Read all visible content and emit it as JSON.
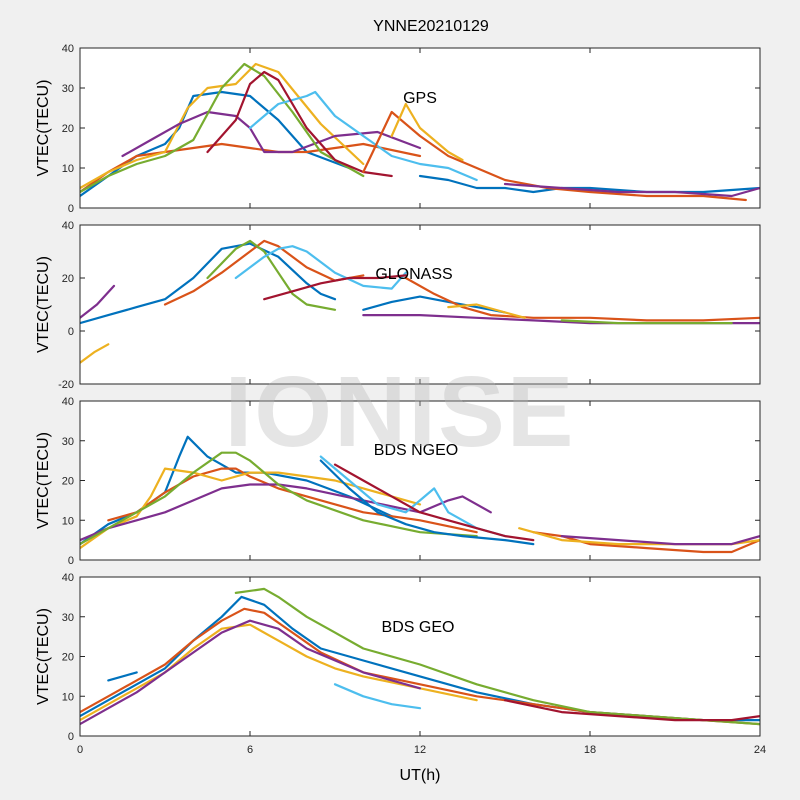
{
  "title": "YNNE20210129",
  "watermark": "IONISE",
  "xlabel": "UT(h)",
  "x_ticks": [
    "0",
    "6",
    "12",
    "18",
    "24"
  ],
  "colors": [
    "#0072BD",
    "#D95319",
    "#EDB120",
    "#7E2F8E",
    "#77AC30",
    "#4DBEEE",
    "#A2142F"
  ],
  "chart_data": [
    {
      "type": "line",
      "title": "GPS",
      "ylabel": "VTEC(TECU)",
      "xlim": [
        0,
        24
      ],
      "ylim": [
        0,
        40
      ],
      "y_ticks": [
        "0",
        "10",
        "20",
        "30",
        "40"
      ],
      "series": [
        {
          "x": [
            0.0,
            1.0,
            2.0,
            3.0,
            3.5,
            4.0,
            5.0,
            6.0,
            7.0,
            8.0,
            9.5
          ],
          "values": [
            3,
            8,
            13,
            16,
            20,
            28,
            29,
            28,
            22,
            14,
            10
          ]
        },
        {
          "x": [
            0.0,
            1.0,
            2.0,
            3.0,
            4.0,
            5.0,
            6.0,
            7.0,
            8.0,
            9.0,
            10.0,
            12.0
          ],
          "values": [
            4,
            9,
            13,
            14,
            15,
            16,
            15,
            14,
            14,
            15,
            16,
            13
          ]
        },
        {
          "x": [
            0.0,
            1.0,
            2.0,
            3.0,
            3.8,
            4.5,
            5.5,
            6.2,
            7.0,
            8.5,
            10.0
          ],
          "values": [
            5,
            9,
            12,
            14,
            25,
            30,
            31,
            36,
            34,
            21,
            11
          ]
        },
        {
          "x": [
            1.5,
            2.5,
            3.5,
            4.5,
            5.5,
            6.0,
            6.5,
            7.5,
            9.0,
            10.5,
            12.0
          ],
          "values": [
            13,
            17,
            21,
            24,
            23,
            20,
            14,
            14,
            18,
            19,
            15
          ]
        },
        {
          "x": [
            0.0,
            1.0,
            2.0,
            3.0,
            4.0,
            5.0,
            5.8,
            6.5,
            7.5,
            8.5,
            10.0
          ],
          "values": [
            4,
            8,
            11,
            13,
            17,
            30,
            36,
            33,
            24,
            14,
            8
          ]
        },
        {
          "x": [
            6.0,
            7.0,
            8.0,
            8.3,
            9.0,
            10.0,
            11.0,
            12.0,
            13.0,
            14.0
          ],
          "values": [
            20,
            26,
            28,
            29,
            23,
            18,
            13,
            11,
            10,
            7
          ]
        },
        {
          "x": [
            4.5,
            5.5,
            6.0,
            6.5,
            7.0,
            8.0,
            9.0,
            10.0,
            11.0
          ],
          "values": [
            14,
            22,
            31,
            34,
            32,
            20,
            12,
            9,
            8
          ]
        },
        {
          "x": [
            12.0,
            13.0,
            14.0,
            15.0,
            16.0,
            17.0,
            18.0,
            20.0,
            22.0,
            24.0
          ],
          "values": [
            8,
            7,
            5,
            5,
            4,
            5,
            5,
            4,
            4,
            5
          ]
        },
        {
          "x": [
            10.0,
            11.0,
            12.0,
            13.0,
            14.0,
            15.0,
            16.5,
            18.0,
            20.0,
            22.0,
            23.5
          ],
          "values": [
            9,
            24,
            18,
            13,
            10,
            7,
            5,
            4,
            3,
            3,
            2
          ]
        },
        {
          "x": [
            11.0,
            11.5,
            12.0,
            13.0,
            13.5
          ],
          "values": [
            18,
            26,
            20,
            14,
            12
          ]
        },
        {
          "x": [
            15.0,
            17.0,
            19.0,
            21.0,
            23.0,
            24.0
          ],
          "values": [
            6,
            5,
            4,
            4,
            3,
            5
          ]
        }
      ]
    },
    {
      "type": "line",
      "title": "GLONASS",
      "ylabel": "VTEC(TECU)",
      "xlim": [
        0,
        24
      ],
      "ylim": [
        -20,
        40
      ],
      "y_ticks": [
        "-20",
        "0",
        "20",
        "40"
      ],
      "series": [
        {
          "x": [
            0.0,
            1.0,
            2.0,
            3.0,
            4.0,
            5.0,
            6.0,
            7.0,
            8.0,
            8.5,
            9.0
          ],
          "values": [
            3,
            6,
            9,
            12,
            20,
            31,
            33,
            28,
            18,
            14,
            12
          ]
        },
        {
          "x": [
            3.0,
            4.0,
            5.0,
            6.0,
            6.5,
            7.0,
            8.0,
            9.0,
            10.0
          ],
          "values": [
            10,
            15,
            22,
            30,
            34,
            32,
            24,
            19,
            21
          ]
        },
        {
          "x": [
            0.0,
            0.5,
            1.0
          ],
          "values": [
            -12,
            -8,
            -5
          ]
        },
        {
          "x": [
            0.0,
            0.6,
            1.2
          ],
          "values": [
            5,
            10,
            17
          ]
        },
        {
          "x": [
            4.5,
            5.5,
            6.0,
            6.5,
            7.0,
            7.5,
            8.0,
            9.0
          ],
          "values": [
            20,
            31,
            34,
            30,
            22,
            14,
            10,
            8
          ]
        },
        {
          "x": [
            5.5,
            6.5,
            7.0,
            7.5,
            8.0,
            9.0,
            10.0,
            11.0,
            11.5
          ],
          "values": [
            20,
            28,
            31,
            32,
            30,
            22,
            17,
            16,
            22
          ]
        },
        {
          "x": [
            6.5,
            7.5,
            8.5,
            9.5,
            10.5,
            11.5
          ],
          "values": [
            12,
            15,
            18,
            20,
            20,
            21
          ]
        },
        {
          "x": [
            10.0,
            11.0,
            12.0,
            13.0,
            14.0,
            15.0
          ],
          "values": [
            8,
            11,
            13,
            11,
            9,
            7
          ]
        },
        {
          "x": [
            11.5,
            12.5,
            13.5,
            14.5,
            16.0,
            18.0,
            20.0,
            22.0,
            24.0
          ],
          "values": [
            20,
            14,
            9,
            6,
            5,
            5,
            4,
            4,
            5
          ]
        },
        {
          "x": [
            13.0,
            14.0,
            15.0,
            15.7
          ],
          "values": [
            9,
            10,
            7,
            5
          ]
        },
        {
          "x": [
            10.0,
            12.0,
            14.0,
            16.0,
            18.0,
            20.0,
            22.0,
            24.0
          ],
          "values": [
            6,
            6,
            5,
            4,
            3,
            3,
            3,
            3
          ]
        },
        {
          "x": [
            17.0,
            19.0,
            21.0,
            23.0
          ],
          "values": [
            4,
            3,
            3,
            3
          ]
        }
      ]
    },
    {
      "type": "line",
      "title": "BDS NGEO",
      "ylabel": "VTEC(TECU)",
      "xlim": [
        0,
        24
      ],
      "ylim": [
        0,
        40
      ],
      "y_ticks": [
        "0",
        "10",
        "20",
        "30",
        "40"
      ],
      "series": [
        {
          "x": [
            0.0,
            1.0,
            2.0,
            3.0,
            3.5,
            3.8,
            4.5,
            5.5,
            6.5,
            8.0,
            9.5,
            11.0
          ],
          "values": [
            4,
            9,
            12,
            17,
            26,
            31,
            26,
            22,
            22,
            20,
            16,
            11
          ]
        },
        {
          "x": [
            1.0,
            2.0,
            3.0,
            4.0,
            5.0,
            5.5,
            6.0,
            7.0,
            8.0,
            10.0,
            12.0,
            14.0
          ],
          "values": [
            10,
            12,
            17,
            21,
            23,
            23,
            21,
            18,
            16,
            12,
            10,
            7
          ]
        },
        {
          "x": [
            0.0,
            1.0,
            2.0,
            2.5,
            3.0,
            4.0,
            5.0,
            6.0,
            7.0,
            8.0,
            9.0,
            10.0,
            12.0
          ],
          "values": [
            3,
            8,
            11,
            16,
            23,
            22,
            20,
            22,
            22,
            21,
            20,
            18,
            14
          ]
        },
        {
          "x": [
            0.0,
            1.0,
            2.0,
            3.0,
            4.0,
            5.0,
            6.0,
            7.0,
            8.0,
            10.0,
            12.0,
            13.0,
            13.5,
            14.5
          ],
          "values": [
            5,
            8,
            10,
            12,
            15,
            18,
            19,
            19,
            18,
            15,
            12,
            15,
            16,
            12
          ]
        },
        {
          "x": [
            0.0,
            1.0,
            2.0,
            3.0,
            4.0,
            5.0,
            5.5,
            6.0,
            7.0,
            8.0,
            10.0,
            12.0,
            14.0
          ],
          "values": [
            4,
            8,
            12,
            16,
            22,
            27,
            27,
            25,
            19,
            15,
            10,
            7,
            6
          ]
        },
        {
          "x": [
            8.5,
            9.5,
            10.5,
            11.5,
            12.0,
            12.5,
            13.0,
            14.0,
            15.0
          ],
          "values": [
            26,
            20,
            14,
            12,
            15,
            18,
            12,
            8,
            6
          ]
        },
        {
          "x": [
            9.0,
            10.0,
            11.0,
            12.0,
            13.0,
            14.0,
            15.0,
            16.0
          ],
          "values": [
            24,
            20,
            16,
            12,
            10,
            8,
            6,
            5
          ]
        },
        {
          "x": [
            8.5,
            9.5,
            10.5,
            11.5,
            12.5,
            13.5,
            15.0,
            16.0
          ],
          "values": [
            25,
            18,
            12,
            9,
            7,
            6,
            5,
            4
          ]
        },
        {
          "x": [
            16.0,
            17.0,
            18.0,
            20.0,
            22.0,
            23.0,
            24.0
          ],
          "values": [
            7,
            6,
            4,
            3,
            2,
            2,
            5
          ]
        },
        {
          "x": [
            15.5,
            17.0,
            19.0,
            21.0,
            23.0,
            24.0
          ],
          "values": [
            8,
            5,
            4,
            4,
            4,
            5
          ]
        },
        {
          "x": [
            17.0,
            19.0,
            21.0,
            23.0,
            24.0
          ],
          "values": [
            6,
            5,
            4,
            4,
            6
          ]
        }
      ]
    },
    {
      "type": "line",
      "title": "BDS GEO",
      "ylabel": "VTEC(TECU)",
      "xlim": [
        0,
        24
      ],
      "ylim": [
        0,
        40
      ],
      "y_ticks": [
        "0",
        "10",
        "20",
        "30",
        "40"
      ],
      "series": [
        {
          "x": [
            0.0,
            1.0,
            2.0,
            3.0,
            4.0,
            5.0,
            5.7,
            6.5,
            7.5,
            8.5,
            10.0,
            12.0,
            14.0,
            16.0,
            18.0,
            20.0,
            22.0,
            24.0
          ],
          "values": [
            5,
            9,
            13,
            17,
            24,
            30,
            35,
            33,
            27,
            22,
            19,
            15,
            11,
            8,
            6,
            5,
            4,
            4
          ]
        },
        {
          "x": [
            0.0,
            1.0,
            2.0,
            3.0,
            4.0,
            5.0,
            5.8,
            6.5,
            7.5,
            8.5,
            10.0,
            12.0,
            14.0,
            16.0,
            18.0,
            20.0,
            22.0,
            24.0
          ],
          "values": [
            6,
            10,
            14,
            18,
            24,
            29,
            32,
            31,
            26,
            21,
            16,
            13,
            10,
            8,
            6,
            5,
            4,
            3
          ]
        },
        {
          "x": [
            0.0,
            1.0,
            2.0,
            3.0,
            4.0,
            5.0,
            6.0,
            7.0,
            8.0,
            9.0,
            10.0,
            12.0,
            14.0
          ],
          "values": [
            4,
            8,
            12,
            16,
            22,
            27,
            28,
            24,
            20,
            17,
            15,
            12,
            9
          ]
        },
        {
          "x": [
            0.0,
            1.0,
            2.0,
            3.0,
            4.0,
            5.0,
            6.0,
            7.0,
            8.0,
            10.0,
            12.0
          ],
          "values": [
            3,
            7,
            11,
            16,
            21,
            26,
            29,
            27,
            22,
            16,
            12
          ]
        },
        {
          "x": [
            5.5,
            6.5,
            7.0,
            8.0,
            9.0,
            10.0,
            12.0,
            14.0,
            16.0,
            18.0,
            20.0,
            22.0,
            24.0
          ],
          "values": [
            36,
            37,
            35,
            30,
            26,
            22,
            18,
            13,
            9,
            6,
            5,
            4,
            3
          ]
        },
        {
          "x": [
            9.0,
            10.0,
            11.0,
            12.0
          ],
          "values": [
            13,
            10,
            8,
            7
          ]
        },
        {
          "x": [
            15.0,
            17.0,
            19.0,
            21.0,
            23.0,
            24.0
          ],
          "values": [
            9,
            6,
            5,
            4,
            4,
            5
          ]
        },
        {
          "x": [
            1.0,
            2.0
          ],
          "values": [
            14,
            16
          ]
        }
      ]
    }
  ]
}
